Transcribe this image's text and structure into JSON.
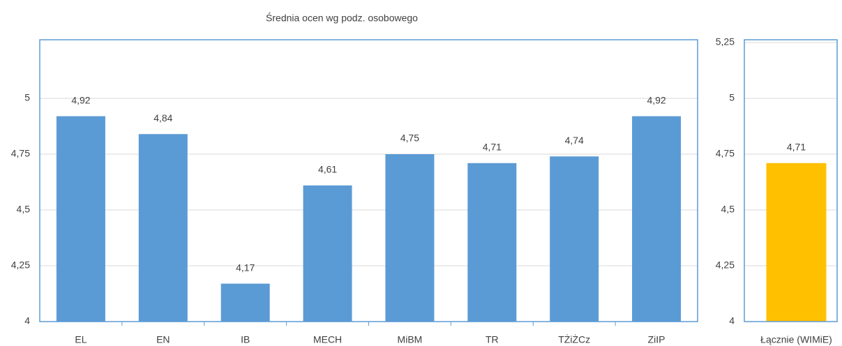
{
  "chart_data": [
    {
      "type": "bar",
      "title": "Średnia ocen wg podz. osobowego",
      "categories": [
        "EL",
        "EN",
        "IB",
        "MECH",
        "MiBM",
        "TR",
        "TŻiŻCz",
        "ZiIP"
      ],
      "values": [
        4.92,
        4.84,
        4.17,
        4.61,
        4.75,
        4.71,
        4.74,
        4.92
      ],
      "value_labels": [
        "4,92",
        "4,84",
        "4,17",
        "4,61",
        "4,75",
        "4,71",
        "4,74",
        "4,92"
      ],
      "color": "#5b9bd5",
      "ylim": [
        4,
        5.25
      ],
      "yticks": [
        4,
        {
          "value": 4.25,
          "label": "4,25"
        },
        {
          "value": 4.5,
          "label": "4,5"
        },
        {
          "value": 4.75,
          "label": "4,75"
        },
        5
      ],
      "grid": true
    },
    {
      "type": "bar",
      "categories": [
        "Łącznie (WIMiE)"
      ],
      "values": [
        4.71
      ],
      "value_labels": [
        "4,71"
      ],
      "color": "#ffc000",
      "ylim": [
        4,
        5.25
      ],
      "yticks": [
        4,
        {
          "value": 4.25,
          "label": "4,25"
        },
        {
          "value": 4.5,
          "label": "4,5"
        },
        {
          "value": 4.75,
          "label": "4,75"
        },
        5,
        {
          "value": 5.25,
          "label": "5,25"
        }
      ],
      "grid": true
    }
  ]
}
